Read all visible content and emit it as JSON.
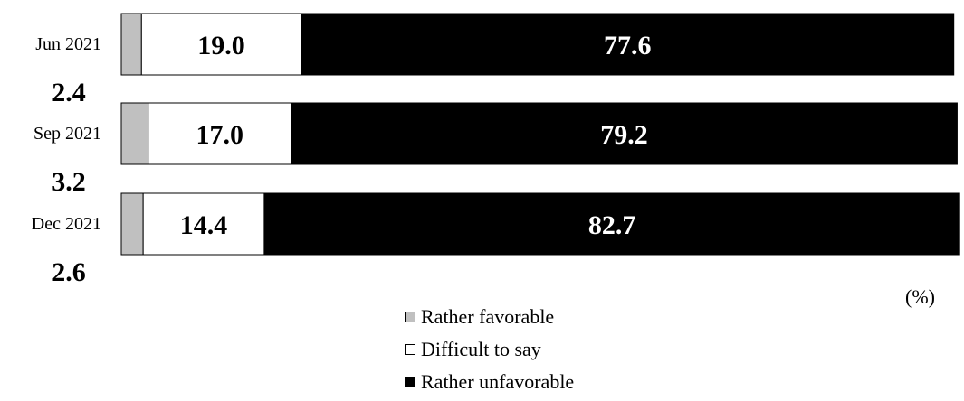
{
  "chart_data": {
    "type": "bar",
    "orientation": "horizontal",
    "stacked": true,
    "title": "",
    "xlabel": "",
    "ylabel": "",
    "unit": "(%)",
    "xlim": [
      0,
      100
    ],
    "grid": false,
    "legend_position": "bottom",
    "categories": [
      "Jun 2021",
      "Sep 2021",
      "Dec 2021"
    ],
    "series": [
      {
        "name": "Rather favorable",
        "color": "#c0c0c0",
        "values": [
          2.4,
          3.2,
          2.6
        ],
        "label_placement": "outside-left",
        "label_color": "#000000"
      },
      {
        "name": "Difficult to say",
        "color": "#ffffff",
        "values": [
          19.0,
          17.0,
          14.4
        ],
        "label_placement": "inside",
        "label_color": "#000000"
      },
      {
        "name": "Rather unfavorable",
        "color": "#000000",
        "values": [
          77.6,
          79.2,
          82.7
        ],
        "label_placement": "inside",
        "label_color": "#ffffff"
      }
    ],
    "value_labels": {
      "Rather favorable": [
        "2.4",
        "3.2",
        "2.6"
      ],
      "Difficult to say": [
        "19.0",
        "17.0",
        "14.4"
      ],
      "Rather unfavorable": [
        "77.6",
        "79.2",
        "82.7"
      ]
    }
  }
}
